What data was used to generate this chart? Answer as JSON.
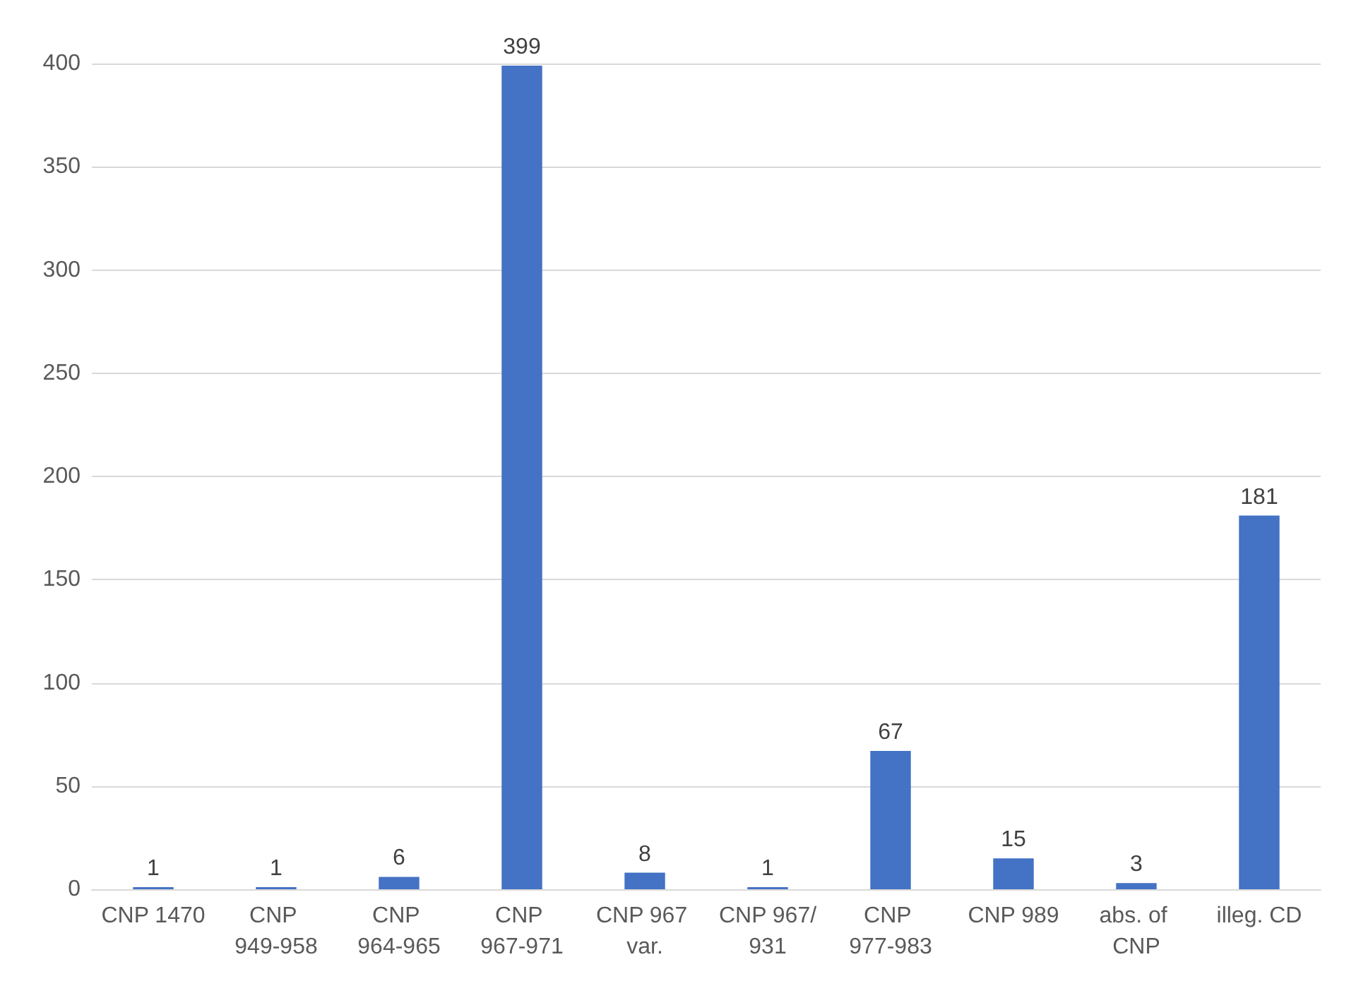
{
  "chart_data": {
    "type": "bar",
    "categories": [
      "CNP 1470",
      "CNP 949-958",
      "CNP 964-965",
      "CNP 967-971",
      "CNP 967 var.",
      "CNP 967/931",
      "CNP 977-983",
      "CNP 989",
      "abs. of CNP",
      "illeg. CD"
    ],
    "values": [
      1,
      1,
      6,
      399,
      8,
      1,
      67,
      15,
      3,
      181
    ],
    "color": "#4472c4",
    "ylim": [
      0,
      400
    ],
    "yticks": [
      0,
      50,
      100,
      150,
      200,
      250,
      300,
      350,
      400
    ],
    "grid": "y",
    "data_labels": true
  }
}
